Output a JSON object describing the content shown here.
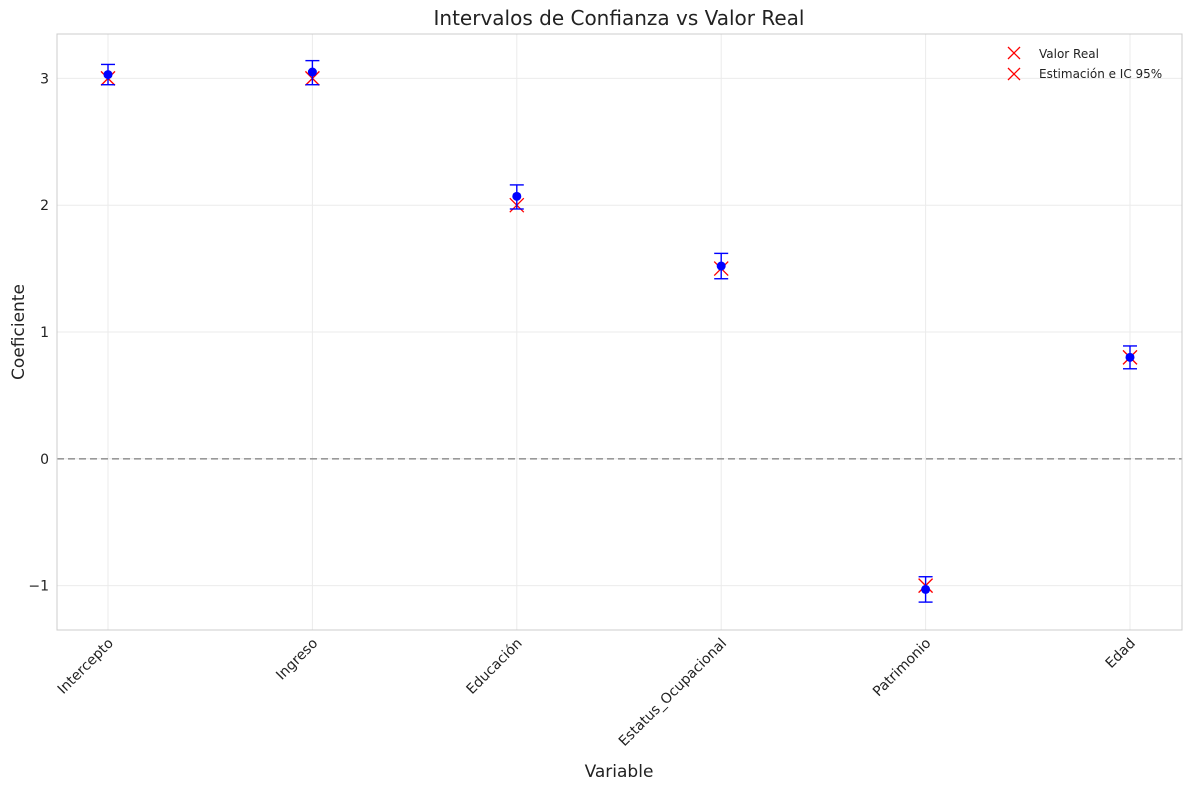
{
  "chart_data": {
    "type": "scatter",
    "title": "Intervalos de Confianza vs Valor Real",
    "xlabel": "Variable",
    "ylabel": "Coeficiente",
    "categories": [
      "Intercepto",
      "Ingreso",
      "Educación",
      "Estatus_Ocupacional",
      "Patrimonio",
      "Edad"
    ],
    "ylim": [
      -1.35,
      3.35
    ],
    "yticks": [
      -1,
      0,
      1,
      2,
      3
    ],
    "ytick_labels": [
      "−1",
      "0",
      "1",
      "2",
      "3"
    ],
    "grid": true,
    "zero_line": 0,
    "legend_position": "top-right",
    "series": [
      {
        "name": "Valor Real",
        "marker": "x",
        "values": [
          3.0,
          3.0,
          2.0,
          1.5,
          -1.0,
          0.8
        ]
      },
      {
        "name": "Estimación e IC 95%",
        "marker": "circle-errorbar",
        "values": [
          3.03,
          3.05,
          2.07,
          1.52,
          -1.03,
          0.8
        ],
        "lower": [
          2.95,
          2.95,
          1.97,
          1.42,
          -1.13,
          0.71
        ],
        "upper": [
          3.11,
          3.14,
          2.16,
          1.62,
          -0.93,
          0.89
        ]
      }
    ],
    "colors": {
      "real": "#ff0000",
      "estimate": "#0000ff",
      "zero_line": "#999999",
      "grid": "#ebebeb",
      "frame": "#cccccc"
    }
  }
}
